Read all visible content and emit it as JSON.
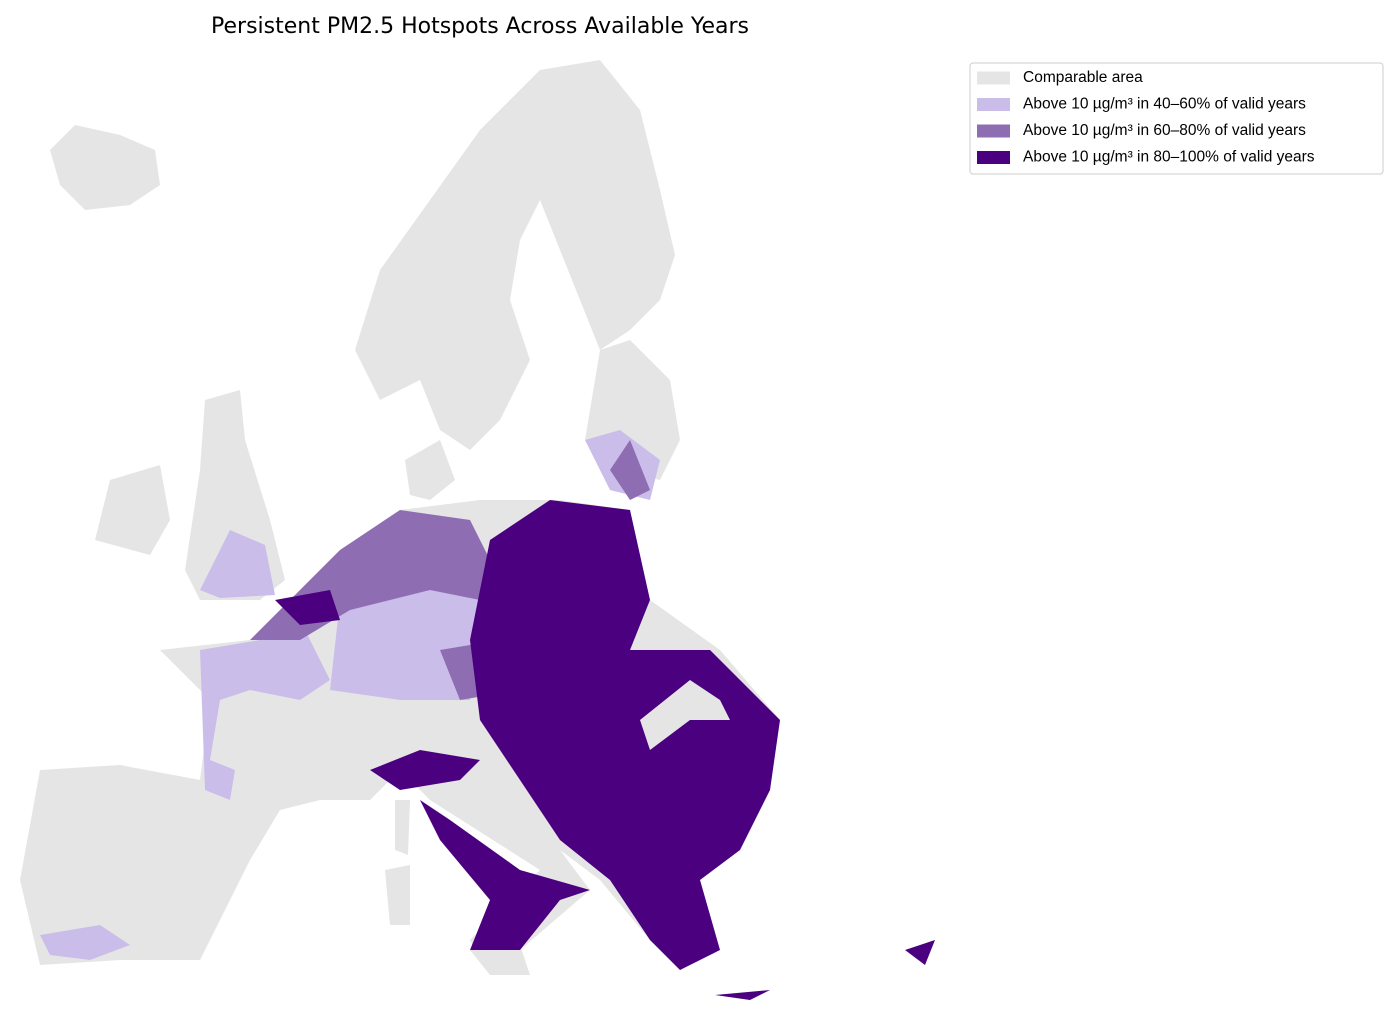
{
  "title": "Persistent PM2.5 Hotspots Across Available Years",
  "legend": {
    "items": [
      {
        "label": "Comparable area",
        "color": "#e5e5e5"
      },
      {
        "label": "Above 10 µg/m³ in 40–60% of valid years",
        "color": "#cbbde9"
      },
      {
        "label": "Above 10 µg/m³ in 60–80% of valid years",
        "color": "#8e6db3"
      },
      {
        "label": "Above 10 µg/m³ in 80–100% of valid years",
        "color": "#4b007f"
      }
    ]
  }
}
